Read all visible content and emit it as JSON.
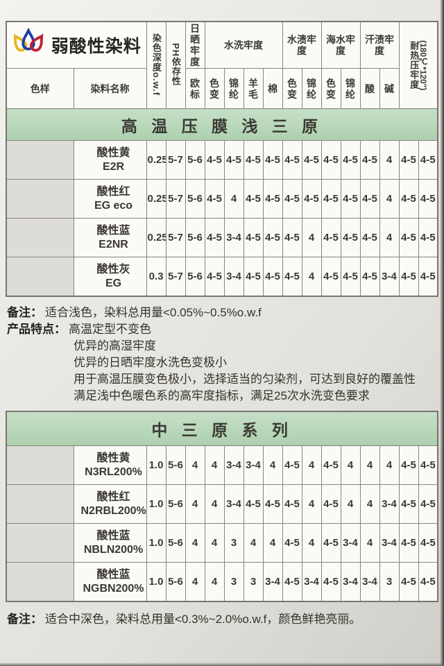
{
  "page": {
    "logo_text": "弱酸性染料",
    "logo_icon": "three-drops-logo"
  },
  "colors": {
    "banner_green": "#b9d8bb",
    "logo_yellow": "#e6b41e",
    "logo_blue": "#1d3da8",
    "logo_red": "#c41f33"
  },
  "header": {
    "sample": "色样",
    "dye_name": "染料名称",
    "depth": "染色深度o.w.f",
    "ph": "PH依存性",
    "light": "日晒牢度",
    "light_sub": "欧标",
    "wash": "水洗牢度",
    "wash_subs": [
      "色变",
      "锦纶",
      "羊毛",
      "棉"
    ],
    "water": "水渍牢度",
    "water_subs": [
      "色变",
      "锦纶"
    ],
    "sea": "海水牢度",
    "sea_subs": [
      "色变",
      "锦纶"
    ],
    "sweat": "汗渍牢度",
    "sweat_subs": [
      "酸",
      "碱"
    ],
    "heat": "耐热压牢度",
    "heat_sub": "(180℃*120\")"
  },
  "tables": [
    {
      "banner": "高 温 压 膜 浅 三 原",
      "rows": [
        {
          "swatch": "#f2c53d",
          "name": "酸性黄",
          "code": "E2R",
          "values": [
            "0.25",
            "5-7",
            "5-6",
            "4-5",
            "4-5",
            "4-5",
            "4-5",
            "4-5",
            "4-5",
            "4-5",
            "4-5",
            "4-5",
            "4",
            "4-5",
            "4-5"
          ]
        },
        {
          "swatch": "#e04a5a",
          "name": "酸性红",
          "code": "EG eco",
          "values": [
            "0.25",
            "5-7",
            "5-6",
            "4-5",
            "4",
            "4-5",
            "4-5",
            "4-5",
            "4-5",
            "4-5",
            "4-5",
            "4-5",
            "4",
            "4-5",
            "4-5"
          ]
        },
        {
          "swatch": "#3c85d2",
          "name": "酸性蓝",
          "code": "E2NR",
          "values": [
            "0.25",
            "5-7",
            "5-6",
            "4-5",
            "3-4",
            "4-5",
            "4-5",
            "4-5",
            "4",
            "4-5",
            "4-5",
            "4-5",
            "4",
            "4-5",
            "4-5"
          ]
        },
        {
          "swatch": "#3a4b5c",
          "name": "酸性灰",
          "code": "EG",
          "values": [
            "0.3",
            "5-7",
            "5-6",
            "4-5",
            "3-4",
            "4-5",
            "4-5",
            "4-5",
            "4",
            "4-5",
            "4-5",
            "4-5",
            "3-4",
            "4-5",
            "4-5"
          ]
        }
      ],
      "notes": [
        {
          "label": "备注：",
          "text": "适合浅色，染料总用量<0.05%~0.5%o.w.f"
        },
        {
          "label": "产品特点：",
          "text": "高温定型不变色"
        },
        {
          "label": "",
          "text": "优异的高湿牢度"
        },
        {
          "label": "",
          "text": "优异的日晒牢度水洗色变极小"
        },
        {
          "label": "",
          "text": "用于高温压膜变色极小，选择适当的匀染剂，可达到良好的覆盖性"
        },
        {
          "label": "",
          "text": "满足浅中色暖色系的高牢度指标，满足25次水洗变色要求"
        }
      ]
    },
    {
      "banner": "中 三 原 系 列",
      "rows": [
        {
          "swatch": "#ef8519",
          "name": "酸性黄",
          "code": "N3RL200%",
          "values": [
            "1.0",
            "5-6",
            "4",
            "4",
            "3-4",
            "3-4",
            "4",
            "4-5",
            "4",
            "4-5",
            "4",
            "4",
            "4",
            "4-5",
            "4-5"
          ]
        },
        {
          "swatch": "#e5173d",
          "name": "酸性红",
          "code": "N2RBL200%",
          "values": [
            "1.0",
            "5-6",
            "4",
            "4",
            "3-4",
            "4-5",
            "4-5",
            "4-5",
            "4",
            "4-5",
            "4",
            "4",
            "3-4",
            "4-5",
            "4-5"
          ]
        },
        {
          "swatch": "#2d6fc2",
          "name": "酸性蓝",
          "code": "NBLN200%",
          "values": [
            "1.0",
            "5-6",
            "4",
            "4",
            "3",
            "4",
            "4",
            "4-5",
            "4",
            "4-5",
            "3-4",
            "4",
            "3-4",
            "4-5",
            "4-5"
          ]
        },
        {
          "swatch": "#0d2f9b",
          "name": "酸性蓝",
          "code": "NGBN200%",
          "values": [
            "1.0",
            "5-6",
            "4",
            "4",
            "3",
            "3",
            "3-4",
            "4-5",
            "3-4",
            "4-5",
            "3-4",
            "3-4",
            "3",
            "4-5",
            "4-5"
          ]
        }
      ],
      "notes": [
        {
          "label": "备注：",
          "text": "适合中深色，染料总用量<0.3%~2.0%o.w.f，颜色鲜艳亮丽。"
        }
      ]
    }
  ]
}
